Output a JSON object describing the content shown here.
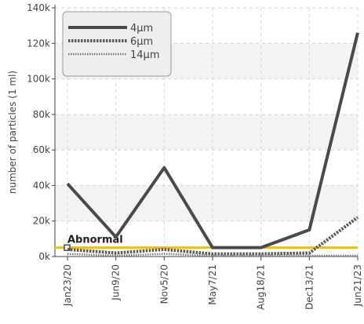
{
  "chart_data": {
    "type": "line",
    "title": "",
    "xlabel": "",
    "ylabel": "number of particles (1 ml)",
    "categories": [
      "Jan23/20",
      "Jun9/20",
      "Nov5/20",
      "May7/21",
      "Aug18/21",
      "Dec13/21",
      "Jun21/23"
    ],
    "ylim": [
      0,
      140000
    ],
    "yticks": [
      0,
      20000,
      40000,
      60000,
      80000,
      100000,
      120000,
      140000
    ],
    "ytick_labels": [
      "0k",
      "20k",
      "40k",
      "60k",
      "80k",
      "100k",
      "120k",
      "140k"
    ],
    "grid": true,
    "legend_position": "top-left",
    "series": [
      {
        "name": "4μm",
        "color": "#4a4a4a",
        "style": "solid",
        "values": [
          41000,
          11000,
          50000,
          5000,
          5000,
          15000,
          126000
        ]
      },
      {
        "name": "6μm",
        "color": "#5a5a5a",
        "style": "dotted",
        "values": [
          4000,
          2000,
          4000,
          1500,
          1500,
          2000,
          22000
        ]
      },
      {
        "name": "14μm",
        "color": "#777777",
        "style": "fine-dotted",
        "values": [
          1500,
          500,
          1500,
          500,
          500,
          500,
          500
        ]
      }
    ],
    "annotations": [
      {
        "label": "Abnormal",
        "y": 5000,
        "color": "#f2c200"
      }
    ]
  }
}
